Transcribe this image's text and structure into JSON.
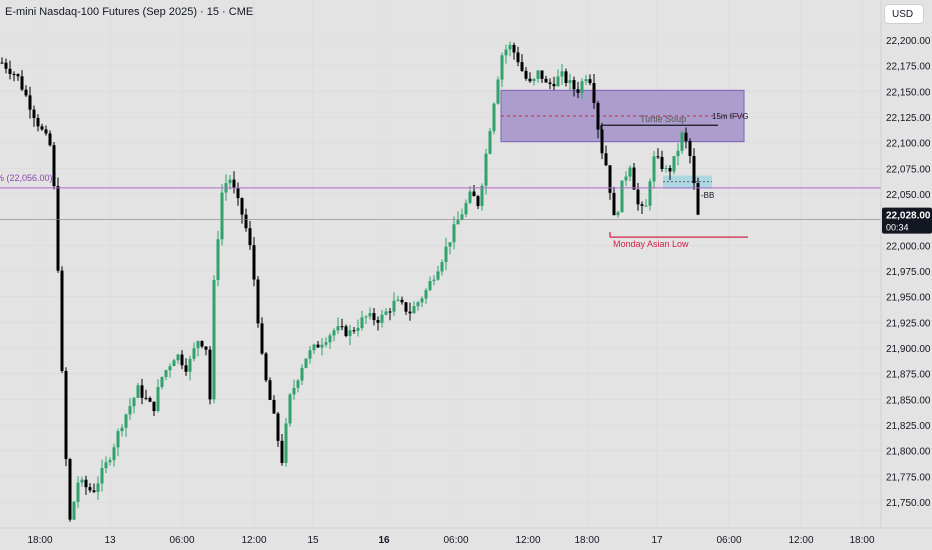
{
  "header": {
    "title": "E-mini Nasdaq-100 Futures (Sep 2025) · 15 · CME",
    "currency_button": "USD"
  },
  "colors": {
    "background": "#e3e3e3",
    "up_candle": "#2fa36b",
    "down_candle": "#000000",
    "fvg_box": "#9b86c4",
    "small_box": "#a3d5e0",
    "level_line": "#b36ad0",
    "asian_low": "#d6224a",
    "price_tag": "#131722"
  },
  "chart_data": {
    "type": "candlestick",
    "symbol": "E-mini Nasdaq-100 Futures (Sep 2025)",
    "interval": "15",
    "exchange": "CME",
    "ylim": [
      21725,
      22225
    ],
    "y_ticks": [
      "22,200.00",
      "22,175.00",
      "22,150.00",
      "22,125.00",
      "22,100.00",
      "22,075.00",
      "22,050.00",
      "22,025.00",
      "22,000.00",
      "21,975.00",
      "21,950.00",
      "21,925.00",
      "21,900.00",
      "21,875.00",
      "21,850.00",
      "21,825.00",
      "21,800.00",
      "21,775.00",
      "21,750.00"
    ],
    "y_tick_values": [
      22200,
      22175,
      22150,
      22125,
      22100,
      22075,
      22050,
      22025,
      22000,
      21975,
      21950,
      21925,
      21900,
      21875,
      21850,
      21825,
      21800,
      21775,
      21750
    ],
    "x_ticks": [
      "18:00",
      "13",
      "06:00",
      "12:00",
      "15",
      "16",
      "06:00",
      "12:00",
      "18:00",
      "17",
      "06:00",
      "12:00",
      "18:00"
    ],
    "bold_x_ticks": [
      "16"
    ],
    "path_keypoints": [
      [
        0,
        22178
      ],
      [
        0.02,
        22165
      ],
      [
        0.035,
        22140
      ],
      [
        0.05,
        22115
      ],
      [
        0.065,
        22095
      ],
      [
        0.072,
        22020
      ],
      [
        0.082,
        21820
      ],
      [
        0.09,
        21730
      ],
      [
        0.1,
        21770
      ],
      [
        0.12,
        21760
      ],
      [
        0.14,
        21790
      ],
      [
        0.16,
        21830
      ],
      [
        0.18,
        21860
      ],
      [
        0.2,
        21840
      ],
      [
        0.21,
        21870
      ],
      [
        0.23,
        21895
      ],
      [
        0.245,
        21880
      ],
      [
        0.26,
        21910
      ],
      [
        0.27,
        21900
      ],
      [
        0.275,
        21850
      ],
      [
        0.28,
        21960
      ],
      [
        0.29,
        22050
      ],
      [
        0.3,
        22068
      ],
      [
        0.31,
        22045
      ],
      [
        0.32,
        22025
      ],
      [
        0.33,
        21990
      ],
      [
        0.345,
        21880
      ],
      [
        0.36,
        21830
      ],
      [
        0.37,
        21790
      ],
      [
        0.38,
        21850
      ],
      [
        0.4,
        21890
      ],
      [
        0.42,
        21905
      ],
      [
        0.44,
        21918
      ],
      [
        0.46,
        21915
      ],
      [
        0.48,
        21930
      ],
      [
        0.5,
        21928
      ],
      [
        0.52,
        21945
      ],
      [
        0.54,
        21935
      ],
      [
        0.56,
        21955
      ],
      [
        0.58,
        21985
      ],
      [
        0.6,
        22020
      ],
      [
        0.62,
        22050
      ],
      [
        0.63,
        22040
      ],
      [
        0.64,
        22090
      ],
      [
        0.65,
        22140
      ],
      [
        0.66,
        22185
      ],
      [
        0.67,
        22195
      ],
      [
        0.68,
        22185
      ],
      [
        0.69,
        22165
      ],
      [
        0.7,
        22155
      ],
      [
        0.71,
        22170
      ],
      [
        0.72,
        22155
      ],
      [
        0.74,
        22165
      ],
      [
        0.76,
        22150
      ],
      [
        0.775,
        22170
      ],
      [
        0.785,
        22135
      ],
      [
        0.79,
        22100
      ],
      [
        0.8,
        22075
      ],
      [
        0.81,
        22020
      ],
      [
        0.82,
        22060
      ],
      [
        0.83,
        22080
      ],
      [
        0.84,
        22040
      ],
      [
        0.85,
        22030
      ],
      [
        0.86,
        22085
      ],
      [
        0.87,
        22080
      ],
      [
        0.88,
        22070
      ],
      [
        0.89,
        22085
      ],
      [
        0.9,
        22110
      ],
      [
        0.91,
        22085
      ],
      [
        0.92,
        22028
      ]
    ],
    "current_price": "22,028.00",
    "countdown": "00:34",
    "annotations": {
      "level_line": {
        "label": "% (22,056.00)",
        "price": 22056
      },
      "fvg_zone": {
        "label": "15m IFVG",
        "top": 22151,
        "bottom": 22101
      },
      "fvg_midline": 22126,
      "turtle_soup": {
        "label": "Turtle Soup",
        "price": 22117
      },
      "small_zone": {
        "top": 22068,
        "bottom": 22055
      },
      "small_zone_mid": 22062,
      "bb": {
        "label": "-BB",
        "price": 22048
      },
      "asian_low": {
        "label": "Monday Asian Low",
        "price": 22008
      }
    }
  }
}
